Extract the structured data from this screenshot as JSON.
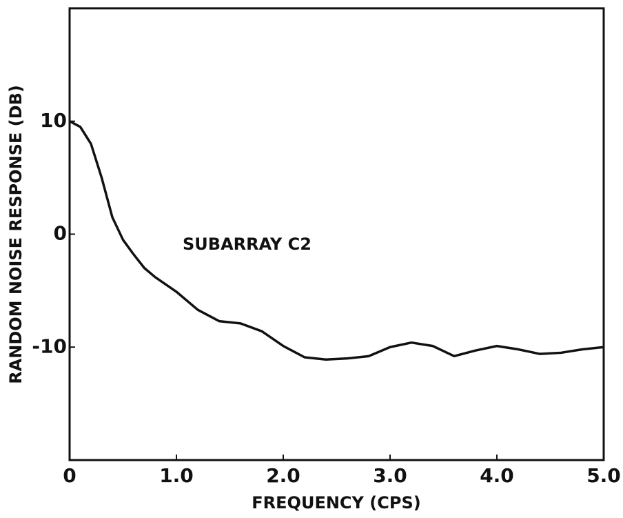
{
  "chart_data": {
    "type": "line",
    "annotation": "SUBARRAY C2",
    "xlabel": "FREQUENCY (CPS)",
    "ylabel": "RANDOM NOISE RESPONSE (DB)",
    "x": [
      0,
      0.1,
      0.2,
      0.3,
      0.4,
      0.5,
      0.6,
      0.7,
      0.8,
      1.0,
      1.2,
      1.4,
      1.6,
      1.8,
      2.0,
      2.2,
      2.4,
      2.6,
      2.8,
      3.0,
      3.2,
      3.4,
      3.6,
      3.8,
      4.0,
      4.2,
      4.4,
      4.6,
      4.8,
      5.0
    ],
    "series": [
      {
        "color": "#111111",
        "values": [
          10,
          9.5,
          8,
          5,
          1.5,
          -0.5,
          -1.8,
          -3,
          -3.8,
          -5.1,
          -6.7,
          -7.7,
          -7.9,
          -8.6,
          -9.9,
          -10.9,
          -11.1,
          -11,
          -10.8,
          -10,
          -9.6,
          -9.9,
          -10.8,
          -10.3,
          -9.9,
          -10.2,
          -10.6,
          -10.5,
          -10.2,
          -10
        ]
      }
    ],
    "xlim": [
      0,
      5
    ],
    "xticks": [
      0,
      {
        "value": 1,
        "label": "1.0"
      },
      {
        "value": 2,
        "label": "2.0"
      },
      {
        "value": 3,
        "label": "3.0"
      },
      {
        "value": 4,
        "label": "4.0"
      },
      {
        "value": 5,
        "label": "5.0"
      }
    ],
    "ylim": [
      -20,
      20
    ],
    "yticks": [
      -10,
      0,
      10
    ],
    "grid": false
  }
}
